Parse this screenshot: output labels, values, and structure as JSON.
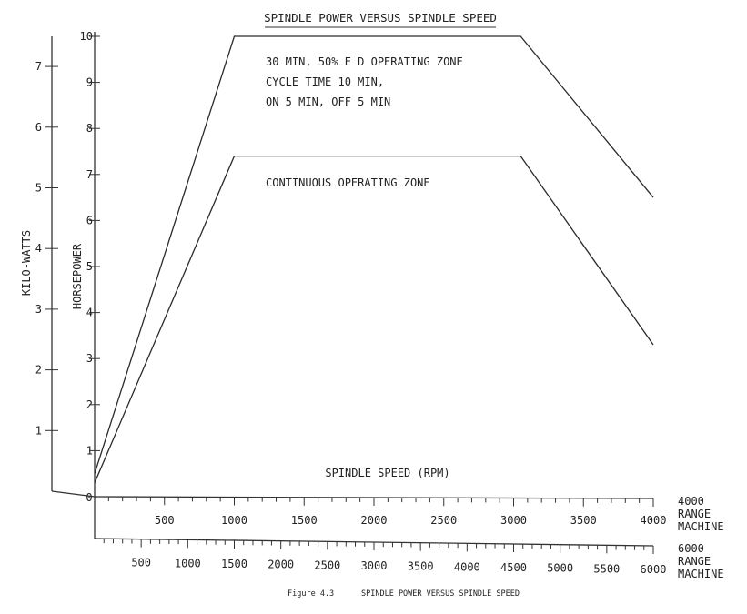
{
  "chart_data": {
    "type": "line",
    "title": "SPINDLE POWER VERSUS SPINDLE SPEED",
    "xlabel": "SPINDLE SPEED (RPM)",
    "ylabel_kw": "KILO-WATTS",
    "ylabel_hp": "HORSEPOWER",
    "kw_ticks": [
      1,
      2,
      3,
      4,
      5,
      6,
      7
    ],
    "kw_ylim": [
      0,
      7.5
    ],
    "hp_ticks": [
      1,
      2,
      3,
      4,
      5,
      6,
      7,
      8,
      9,
      10
    ],
    "hp_ylim": [
      0,
      10
    ],
    "x_axis_4000": {
      "label_lines": [
        "4000",
        "RANGE",
        "MACHINE"
      ],
      "ticks": [
        0,
        500,
        1000,
        1500,
        2000,
        2500,
        3000,
        3500,
        4000
      ],
      "xlim": [
        0,
        4000
      ]
    },
    "x_axis_6000": {
      "label_lines": [
        "6000",
        "RANGE",
        "MACHINE"
      ],
      "ticks": [
        500,
        1000,
        1500,
        2000,
        2500,
        3000,
        3500,
        4000,
        4500,
        5000,
        5500,
        6000
      ],
      "xlim": [
        0,
        6000
      ]
    },
    "series": [
      {
        "name": "30 MIN, 50% E D OPERATING ZONE",
        "annotation": [
          "30 MIN, 50% E D OPERATING ZONE",
          "CYCLE TIME 10 MIN,",
          "ON 5 MIN, OFF 5 MIN"
        ],
        "points": [
          [
            0,
            0.5
          ],
          [
            1000,
            10
          ],
          [
            3050,
            10
          ],
          [
            4000,
            6.5
          ]
        ]
      },
      {
        "name": "CONTINUOUS OPERATING ZONE",
        "annotation": [
          "CONTINUOUS OPERATING ZONE"
        ],
        "points": [
          [
            0,
            0.3
          ],
          [
            1000,
            7.4
          ],
          [
            3050,
            7.4
          ],
          [
            4000,
            3.3
          ]
        ]
      }
    ],
    "caption": {
      "figure": "Figure 4.3",
      "text": "SPINDLE POWER VERSUS SPINDLE SPEED"
    },
    "grid": false,
    "legend": "none"
  }
}
